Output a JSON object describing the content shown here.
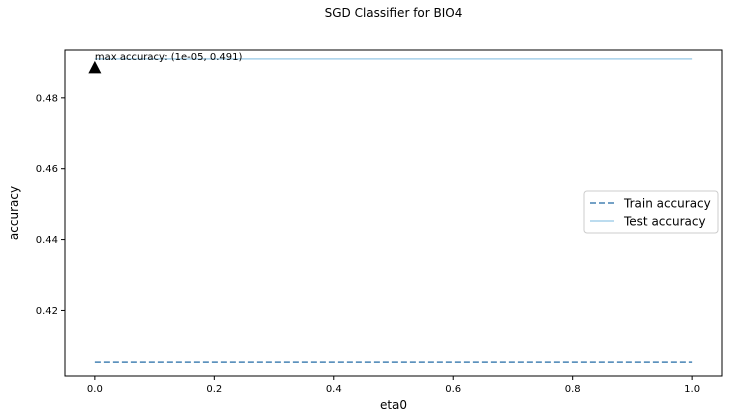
{
  "chart_data": {
    "type": "line",
    "title": "SGD Classifier for BIO4",
    "xlabel": "eta0",
    "ylabel": "accuracy",
    "xlim": [
      -0.05,
      1.05
    ],
    "ylim": [
      0.4015,
      0.4935
    ],
    "xticks": [
      0.0,
      0.2,
      0.4,
      0.6,
      0.8,
      1.0
    ],
    "xtick_labels": [
      "0.0",
      "0.2",
      "0.4",
      "0.6",
      "0.8",
      "1.0"
    ],
    "yticks": [
      0.42,
      0.44,
      0.46,
      0.48
    ],
    "ytick_labels": [
      "0.42",
      "0.44",
      "0.46",
      "0.48"
    ],
    "series": [
      {
        "name": "Train accuracy",
        "x": [
          1e-05,
          1.0
        ],
        "y": [
          0.4054,
          0.4054
        ],
        "color": "#4682b4",
        "style": "dashed"
      },
      {
        "name": "Test accuracy",
        "x": [
          1e-05,
          1.0
        ],
        "y": [
          0.491,
          0.491
        ],
        "color": "#a6d1ea",
        "style": "solid"
      }
    ],
    "annotation": {
      "text": "max accuracy: (1e-05, 0.491)",
      "x": 1e-05,
      "y": 0.491,
      "marker": "triangle-up"
    },
    "grid": false,
    "legend_placement": "center-right"
  }
}
